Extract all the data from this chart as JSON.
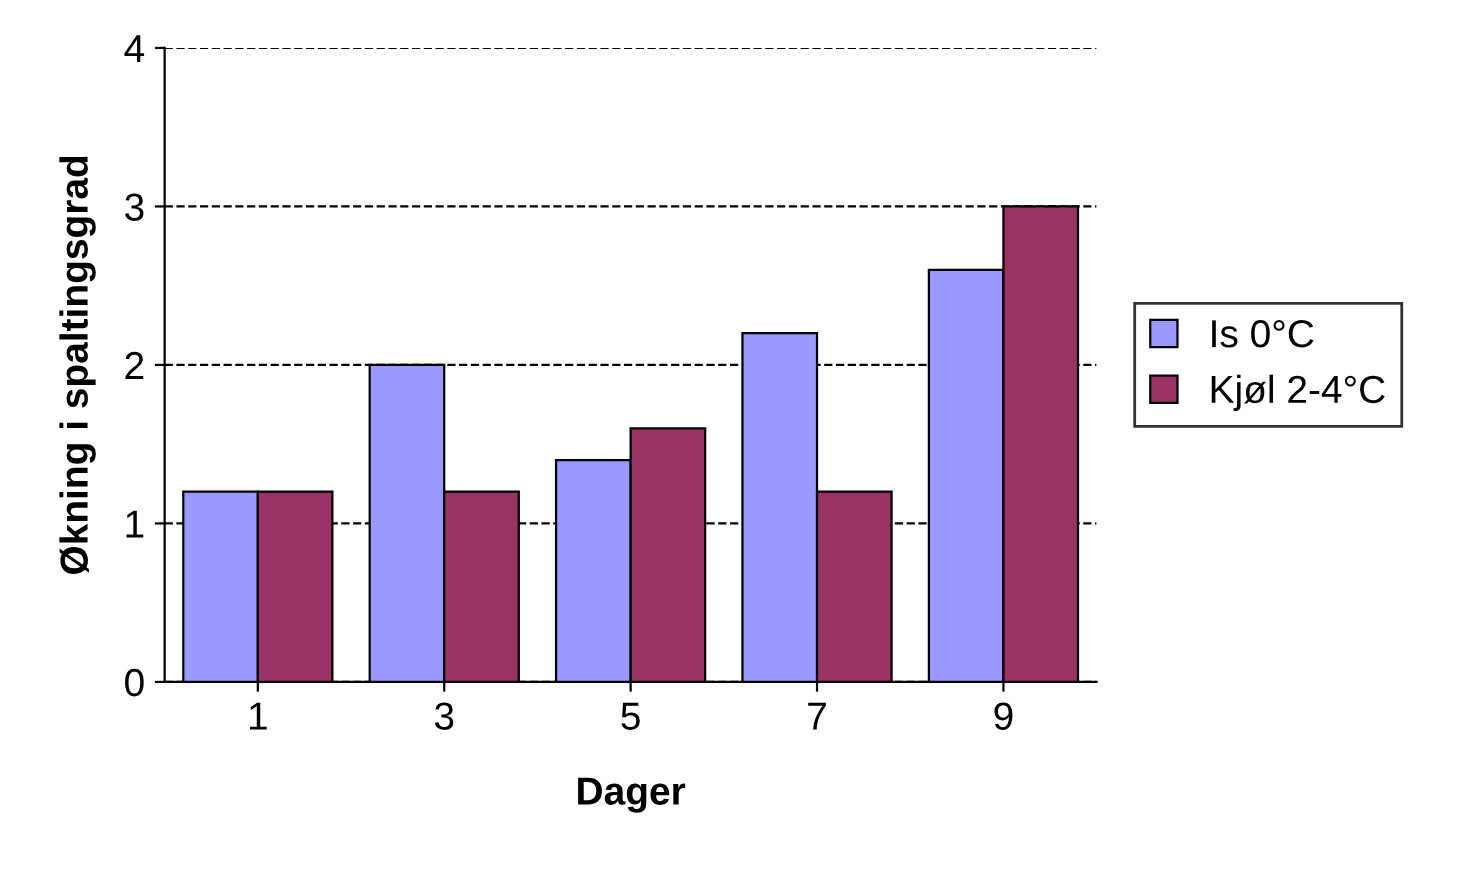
{
  "chart_data": {
    "type": "bar",
    "xlabel": "Dager",
    "ylabel": "Økning i spaltingsgrad",
    "categories": [
      "1",
      "3",
      "5",
      "7",
      "9"
    ],
    "series": [
      {
        "name": "Is 0°C",
        "color": "#9999ff",
        "values": [
          1.2,
          2.0,
          1.4,
          2.2,
          2.6
        ]
      },
      {
        "name": "Kjøl 2-4°C",
        "color": "#993366",
        "values": [
          1.2,
          1.2,
          1.6,
          1.2,
          3.0
        ]
      }
    ],
    "ylim": [
      0,
      4
    ],
    "yticks": [
      0,
      1,
      2,
      3,
      4
    ],
    "grid": "y",
    "legend": "right",
    "line_style": "dashed"
  }
}
